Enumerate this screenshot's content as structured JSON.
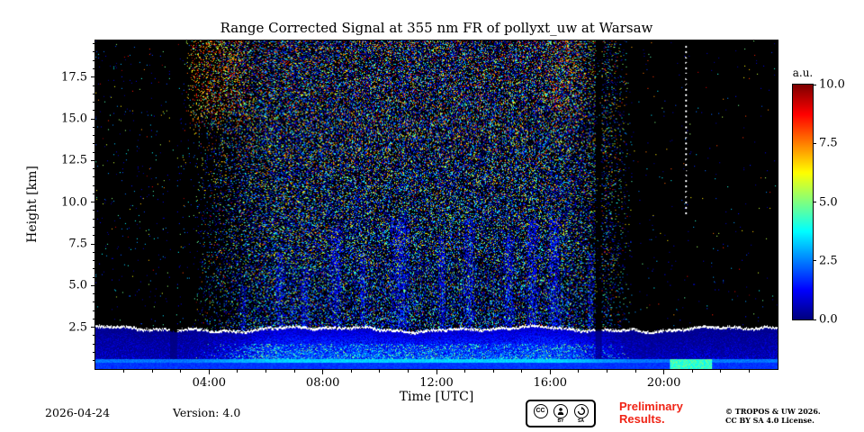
{
  "chart_data": {
    "type": "heatmap",
    "title": "Range Corrected Signal at 355 nm FR of pollyxt_uw at Warsaw",
    "xlabel": "Time [UTC]",
    "ylabel": "Height [km]",
    "x_unit": "hours UTC",
    "x_range": [
      0,
      24
    ],
    "y_unit": "km",
    "y_range": [
      0,
      19.7
    ],
    "value_unit": "a.u.",
    "value_range": [
      0,
      10
    ],
    "colormap": "jet (blue-cyan-green-yellow-red), zero/no-signal shown black",
    "features": [
      "near-ground bright blue band 0-0.35 km across full 24 h",
      "cyan-green line around 0.35-0.6 km across full width, brighter during daytime",
      "aerosol boundary layer up to about 2.2-2.6 km topped by a thin jagged white line",
      "dense multicolor daylight background noise above the boundary layer from about 04:00 to 18:45",
      "red-orange noise patches near 14-19.7 km around 03:30-05:30 and 16:00-17:20",
      "faint blue cloud/virga columns above the boundary layer at several times between 05:00 and 17:30",
      "dark attenuated columns near 02:45 and 17:40",
      "black background with sparse dots before 03:30 and after 19:00",
      "faint white dashed vertical artifact near 20:45 above 9 km",
      "green patch near the ground around 20:15-21:40"
    ],
    "model": {
      "noise": {
        "rise_start_h": 3.4,
        "rise_end_h": 6.3,
        "fall_start_h": 16.5,
        "fall_end_h": 18.9,
        "day_density": 0.46,
        "night_density_early": 0.012,
        "night_density_late": 0.005
      },
      "boundary_layer": {
        "mean_top_km": 2.38,
        "wave_km": 0.22,
        "interior_base": 2.9,
        "interior_min": 0.8
      },
      "ground_band": {
        "blue_top_km": 0.35,
        "blue_value": 1.5,
        "green_top_km": 0.6,
        "green_value_night": 2.4,
        "green_value_day_boost": 0.9
      },
      "convective_speckle": {
        "top_km": 1.5,
        "density": 0.2,
        "v_min": 3.0,
        "v_max": 5.5
      },
      "red_patches": [
        {
          "t0": 3.1,
          "t1": 5.6,
          "h0": 14.0,
          "h1": 19.7,
          "density": 0.2
        },
        {
          "t0": 15.7,
          "t1": 17.35,
          "h0": 14.0,
          "h1": 19.7,
          "density": 0.14
        }
      ],
      "cloud_columns": [
        [
          5.05,
          5.35,
          5.0
        ],
        [
          6.35,
          6.65,
          7.0
        ],
        [
          7.2,
          7.5,
          6.0
        ],
        [
          8.25,
          8.7,
          8.5
        ],
        [
          9.3,
          9.55,
          7.0
        ],
        [
          10.35,
          11.05,
          9.0
        ],
        [
          12.05,
          12.35,
          8.0
        ],
        [
          12.95,
          13.35,
          9.0
        ],
        [
          14.35,
          14.75,
          8.0
        ],
        [
          15.15,
          15.6,
          9.0
        ],
        [
          15.9,
          16.35,
          9.0
        ],
        [
          17.3,
          17.55,
          7.0
        ]
      ],
      "dark_columns": [
        [
          2.62,
          2.88
        ],
        [
          17.6,
          17.8
        ]
      ],
      "dashed_artifact": {
        "time_h": 20.77,
        "h0": 9.3,
        "h1": 19.6
      },
      "ground_green_patch": {
        "t0": 20.2,
        "t1": 21.7,
        "top_km": 0.6,
        "value": 4.3
      }
    }
  },
  "axes": {
    "x_range_hours": [
      0,
      24
    ],
    "y_range_km": [
      0,
      19.7
    ],
    "x_major_ticks": [
      {
        "value": 4,
        "label": "04:00"
      },
      {
        "value": 8,
        "label": "08:00"
      },
      {
        "value": 12,
        "label": "12:00"
      },
      {
        "value": 16,
        "label": "16:00"
      },
      {
        "value": 20,
        "label": "20:00"
      }
    ],
    "x_minor_step_hours": 1,
    "y_major_ticks": [
      {
        "value": 2.5,
        "label": "2.5"
      },
      {
        "value": 5,
        "label": "5.0"
      },
      {
        "value": 7.5,
        "label": "7.5"
      },
      {
        "value": 10,
        "label": "10.0"
      },
      {
        "value": 12.5,
        "label": "12.5"
      },
      {
        "value": 15,
        "label": "15.0"
      },
      {
        "value": 17.5,
        "label": "17.5"
      }
    ],
    "y_minor_step_km": 0.5
  },
  "colorbar": {
    "label": "a.u.",
    "range": [
      0,
      10
    ],
    "colormap": "jet",
    "ticks": [
      {
        "value": 0,
        "label": "0.0"
      },
      {
        "value": 2.5,
        "label": "2.5"
      },
      {
        "value": 5,
        "label": "5.0"
      },
      {
        "value": 7.5,
        "label": "7.5"
      },
      {
        "value": 10,
        "label": "10.0"
      }
    ]
  },
  "footer": {
    "date": "2026-04-24",
    "version": "Version: 4.0",
    "badge": {
      "cc": "CC",
      "by": "BY",
      "sa": "SA"
    },
    "preliminary": {
      "line1": "Preliminary",
      "line2": "Results.",
      "color": "#f02315"
    },
    "copyright": {
      "line1": "© TROPOS & UW 2026.",
      "line2": "CC BY SA 4.0 License."
    }
  }
}
